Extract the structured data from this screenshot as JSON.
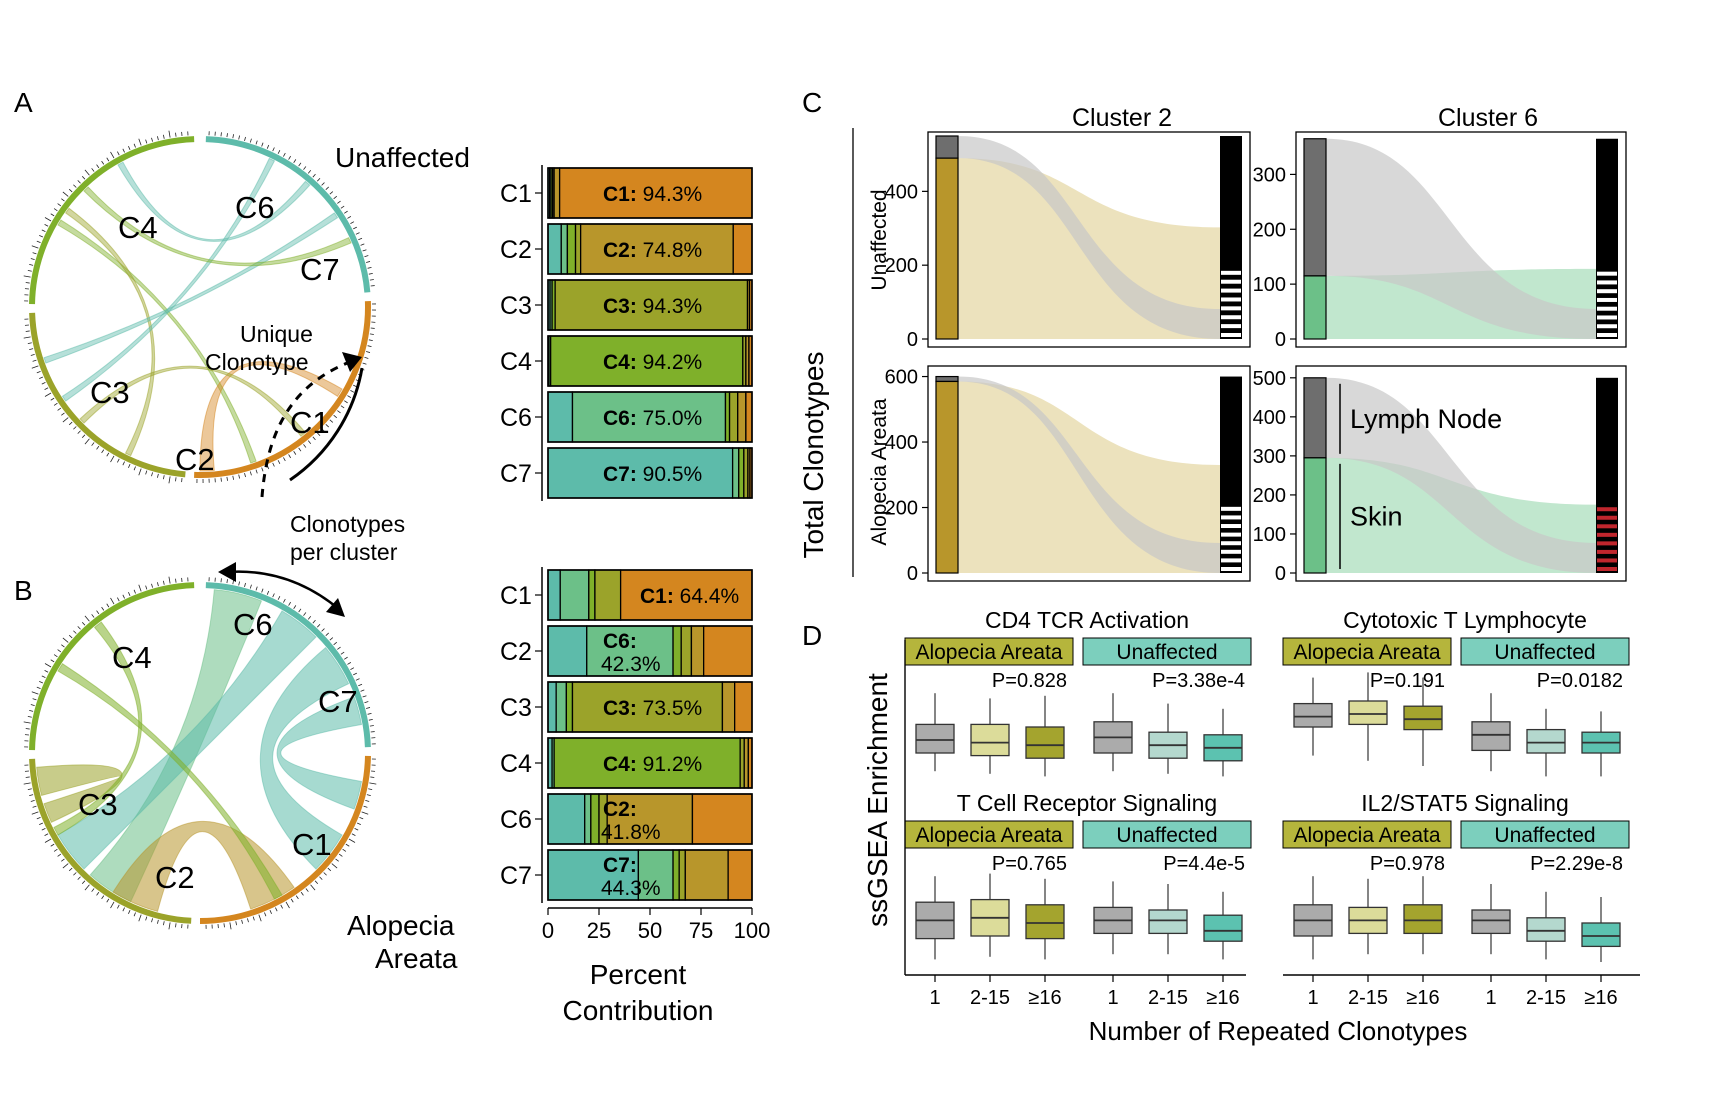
{
  "panel_letters": {
    "a": "A",
    "b": "B",
    "c": "C",
    "d": "D"
  },
  "colors": {
    "C1": "#D4861F",
    "C2": "#B8962B",
    "C3": "#9BA32A",
    "C4": "#7FB02A",
    "C6": "#6CC088",
    "C7": "#5DBBAA",
    "AA": "#B5B53C",
    "Unaff": "#7CCFBD",
    "box_gray": "#ABABAB",
    "box_aa_mid": "#DCDC9A",
    "box_aa_hi": "#A4A42E",
    "box_un_mid": "#B4D8CE",
    "box_un_hi": "#5CC2B0",
    "sankey_tan": "#E9DDB2",
    "sankey_green": "#B6E3C6",
    "lymph": "#6E6E6E",
    "skin": "#6CC088",
    "red": "#C0262D"
  },
  "panelA": {
    "condition": "Unaffected",
    "annotation_line1": "Unique",
    "annotation_line2": "Clonotype",
    "arc_labels": [
      "C6",
      "C4",
      "C7",
      "C3",
      "C1",
      "C2"
    ]
  },
  "middle_note": {
    "line1": "Clonotypes",
    "line2": "per cluster"
  },
  "panelB": {
    "condition_line1": "Alopecia",
    "condition_line2": "Areata",
    "arc_labels": [
      "C6",
      "C4",
      "C7",
      "C3",
      "C1",
      "C2"
    ]
  },
  "chart_data": [
    {
      "id": "A-bars",
      "type": "bar",
      "orientation": "horizontal",
      "stacked": true,
      "categories": [
        "C1",
        "C2",
        "C3",
        "C4",
        "C6",
        "C7"
      ],
      "xlim": [
        0,
        100
      ],
      "bars": [
        {
          "label_name": "C1:",
          "label_value": " 94.3%",
          "segments": [
            {
              "k": "C7",
              "v": 0.8
            },
            {
              "k": "C6",
              "v": 0.7
            },
            {
              "k": "C4",
              "v": 0.8
            },
            {
              "k": "C3",
              "v": 0.7
            },
            {
              "k": "C2",
              "v": 2.7
            },
            {
              "k": "C1",
              "v": 94.3
            }
          ]
        },
        {
          "label_name": "C2:",
          "label_value": " 74.8%",
          "segments": [
            {
              "k": "C7",
              "v": 6.5
            },
            {
              "k": "C6",
              "v": 3
            },
            {
              "k": "C4",
              "v": 4
            },
            {
              "k": "C3",
              "v": 2.5
            },
            {
              "k": "C2",
              "v": 74.8
            },
            {
              "k": "C1",
              "v": 9.2
            }
          ]
        },
        {
          "label_name": "C3:",
          "label_value": " 94.3%",
          "segments": [
            {
              "k": "C7",
              "v": 1
            },
            {
              "k": "C6",
              "v": 1
            },
            {
              "k": "C4",
              "v": 1.5
            },
            {
              "k": "C3",
              "v": 94.3
            },
            {
              "k": "C2",
              "v": 1
            },
            {
              "k": "C1",
              "v": 1.2
            }
          ]
        },
        {
          "label_name": "C4:",
          "label_value": " 94.2%",
          "segments": [
            {
              "k": "C7",
              "v": 0.5
            },
            {
              "k": "C6",
              "v": 0.8
            },
            {
              "k": "C4",
              "v": 94.2
            },
            {
              "k": "C3",
              "v": 1.5
            },
            {
              "k": "C2",
              "v": 1.5
            },
            {
              "k": "C1",
              "v": 1.5
            }
          ]
        },
        {
          "label_name": "C6:",
          "label_value": " 75.0%",
          "segments": [
            {
              "k": "C7",
              "v": 12
            },
            {
              "k": "C6",
              "v": 75
            },
            {
              "k": "C4",
              "v": 2
            },
            {
              "k": "C3",
              "v": 4
            },
            {
              "k": "C2",
              "v": 4
            },
            {
              "k": "C1",
              "v": 3
            }
          ]
        },
        {
          "label_name": "C7:",
          "label_value": " 90.5%",
          "segments": [
            {
              "k": "C7",
              "v": 90.5
            },
            {
              "k": "C6",
              "v": 3
            },
            {
              "k": "C4",
              "v": 2.5
            },
            {
              "k": "C3",
              "v": 2
            },
            {
              "k": "C2",
              "v": 1
            },
            {
              "k": "C1",
              "v": 1
            }
          ]
        }
      ]
    },
    {
      "id": "B-bars",
      "type": "bar",
      "orientation": "horizontal",
      "stacked": true,
      "categories": [
        "C1",
        "C2",
        "C3",
        "C4",
        "C6",
        "C7"
      ],
      "xlim": [
        0,
        100
      ],
      "xticks": [
        "0",
        "25",
        "50",
        "75",
        "100"
      ],
      "xlabel_line1": "Percent",
      "xlabel_line2": "Contribution",
      "bars": [
        {
          "label_name": "C1:",
          "label_value": " 64.4%",
          "segments": [
            {
              "k": "C7",
              "v": 6
            },
            {
              "k": "C6",
              "v": 14
            },
            {
              "k": "C4",
              "v": 3
            },
            {
              "k": "C3",
              "v": 12.6
            },
            {
              "k": "C1",
              "v": 64.4
            }
          ]
        },
        {
          "label_name": "C6:",
          "label_value": "",
          "label_line2": "42.3%",
          "segments": [
            {
              "k": "C7",
              "v": 19
            },
            {
              "k": "C6",
              "v": 42.3
            },
            {
              "k": "C4",
              "v": 4
            },
            {
              "k": "C3",
              "v": 5
            },
            {
              "k": "C2",
              "v": 6
            },
            {
              "k": "C1",
              "v": 23.7
            }
          ]
        },
        {
          "label_name": "C3:",
          "label_value": " 73.5%",
          "segments": [
            {
              "k": "C7",
              "v": 4
            },
            {
              "k": "C6",
              "v": 5
            },
            {
              "k": "C4",
              "v": 3
            },
            {
              "k": "C3",
              "v": 73.5
            },
            {
              "k": "C2",
              "v": 6
            },
            {
              "k": "C1",
              "v": 8.5
            }
          ]
        },
        {
          "label_name": "C4:",
          "label_value": " 91.2%",
          "segments": [
            {
              "k": "C7",
              "v": 2
            },
            {
              "k": "C6",
              "v": 1
            },
            {
              "k": "C4",
              "v": 91.2
            },
            {
              "k": "C3",
              "v": 2
            },
            {
              "k": "C2",
              "v": 2
            },
            {
              "k": "C1",
              "v": 1.8
            }
          ]
        },
        {
          "label_name": "C2:",
          "label_value": "",
          "label_line2": "41.8%",
          "segments": [
            {
              "k": "C7",
              "v": 18
            },
            {
              "k": "C6",
              "v": 3
            },
            {
              "k": "C4",
              "v": 4
            },
            {
              "k": "C3",
              "v": 4
            },
            {
              "k": "C2",
              "v": 41.8
            },
            {
              "k": "C1",
              "v": 29.2
            }
          ]
        },
        {
          "label_name": "C7:",
          "label_value": "",
          "label_line2": "44.3%",
          "segments": [
            {
              "k": "C7",
              "v": 44.3
            },
            {
              "k": "C6",
              "v": 17
            },
            {
              "k": "C4",
              "v": 3
            },
            {
              "k": "C3",
              "v": 3
            },
            {
              "k": "C2",
              "v": 21
            },
            {
              "k": "C1",
              "v": 11.7
            }
          ]
        }
      ]
    },
    {
      "id": "C-sankey",
      "type": "area",
      "ylabel": "Total Clonotypes",
      "col_titles": [
        "Cluster 2",
        "Cluster 6"
      ],
      "row_labels": [
        "Unaffected",
        "Alopecia Areata"
      ],
      "panels": [
        {
          "row": 0,
          "col": 0,
          "ylim": [
            0,
            550
          ],
          "yticks": [
            0,
            200,
            400
          ],
          "lymph": 60,
          "skin": 490,
          "total": 550,
          "split": "tan"
        },
        {
          "row": 0,
          "col": 1,
          "ylim": [
            0,
            370
          ],
          "yticks": [
            0,
            100,
            200,
            300
          ],
          "lymph": 250,
          "skin": 115,
          "total": 365,
          "split": "green"
        },
        {
          "row": 1,
          "col": 0,
          "ylim": [
            0,
            620
          ],
          "yticks": [
            0,
            200,
            400,
            600
          ],
          "lymph": 15,
          "skin": 585,
          "total": 600,
          "split": "tan"
        },
        {
          "row": 1,
          "col": 1,
          "ylim": [
            0,
            520
          ],
          "yticks": [
            0,
            100,
            200,
            300,
            400,
            500
          ],
          "lymph": 205,
          "skin": 295,
          "total": 500,
          "split": "green",
          "lymph_label": "Lymph Node",
          "skin_label": "Skin"
        }
      ]
    },
    {
      "id": "D-boxplots",
      "type": "bar",
      "ylabel": "ssGSEA Enrichment",
      "xlabel": "Number of Repeated Clonotypes",
      "categories": [
        "1",
        "2-15",
        "≥16"
      ],
      "panels": [
        {
          "title": "CD4 TCR Activation",
          "groups": [
            {
              "name": "Alopecia Areata",
              "p": "P=0.828",
              "boxes": [
                [
                  -0.6,
                  -0.25,
                  0,
                  0.3,
                  0.9
                ],
                [
                  -0.65,
                  -0.3,
                  -0.05,
                  0.3,
                  0.8
                ],
                [
                  -0.7,
                  -0.35,
                  -0.1,
                  0.25,
                  0.85
                ]
              ]
            },
            {
              "name": "Unaffected",
              "p": "P=3.38e-4",
              "boxes": [
                [
                  -0.6,
                  -0.25,
                  0.05,
                  0.35,
                  0.9
                ],
                [
                  -0.65,
                  -0.35,
                  -0.1,
                  0.15,
                  0.7
                ],
                [
                  -0.7,
                  -0.4,
                  -0.15,
                  0.1,
                  0.6
                ]
              ]
            }
          ]
        },
        {
          "title": "Cytotoxic T Lymphocyte",
          "groups": [
            {
              "name": "Alopecia Areata",
              "p": "P=0.191",
              "boxes": [
                [
                  -0.3,
                  0.25,
                  0.45,
                  0.7,
                  1.2
                ],
                [
                  -0.4,
                  0.3,
                  0.5,
                  0.75,
                  1.3
                ],
                [
                  -0.5,
                  0.2,
                  0.4,
                  0.65,
                  1.2
                ]
              ]
            },
            {
              "name": "Unaffected",
              "p": "P=0.0182",
              "boxes": [
                [
                  -0.6,
                  -0.2,
                  0.1,
                  0.35,
                  0.9
                ],
                [
                  -0.7,
                  -0.25,
                  -0.05,
                  0.2,
                  0.6
                ],
                [
                  -0.7,
                  -0.25,
                  -0.05,
                  0.15,
                  0.55
                ]
              ]
            }
          ]
        },
        {
          "title": "T Cell Receptor Signaling",
          "groups": [
            {
              "name": "Alopecia Areata",
              "p": "P=0.765",
              "boxes": [
                [
                  -0.7,
                  -0.3,
                  0.05,
                  0.4,
                  0.9
                ],
                [
                  -0.65,
                  -0.25,
                  0.1,
                  0.45,
                  0.95
                ],
                [
                  -0.7,
                  -0.3,
                  0,
                  0.35,
                  0.85
                ]
              ]
            },
            {
              "name": "Unaffected",
              "p": "P=4.4e-5",
              "boxes": [
                [
                  -0.6,
                  -0.2,
                  0.05,
                  0.3,
                  0.8
                ],
                [
                  -0.6,
                  -0.2,
                  0.05,
                  0.25,
                  0.75
                ],
                [
                  -0.7,
                  -0.35,
                  -0.15,
                  0.15,
                  0.6
                ]
              ]
            }
          ]
        },
        {
          "title": "IL2/STAT5 Signaling",
          "groups": [
            {
              "name": "Alopecia Areata",
              "p": "P=0.978",
              "boxes": [
                [
                  -0.7,
                  -0.25,
                  0.05,
                  0.35,
                  0.9
                ],
                [
                  -0.6,
                  -0.2,
                  0.05,
                  0.3,
                  0.85
                ],
                [
                  -0.6,
                  -0.2,
                  0.05,
                  0.35,
                  0.9
                ]
              ]
            },
            {
              "name": "Unaffected",
              "p": "P=2.29e-8",
              "boxes": [
                [
                  -0.6,
                  -0.2,
                  0.05,
                  0.25,
                  0.75
                ],
                [
                  -0.7,
                  -0.35,
                  -0.15,
                  0.1,
                  0.6
                ],
                [
                  -0.75,
                  -0.45,
                  -0.25,
                  0,
                  0.5
                ]
              ]
            }
          ]
        }
      ]
    }
  ]
}
